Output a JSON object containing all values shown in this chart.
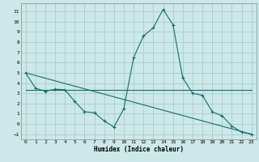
{
  "title": "",
  "xlabel": "Humidex (Indice chaleur)",
  "ylabel": "",
  "bg_color": "#cce8e8",
  "grid_color": "#aacccc",
  "line_color": "#1a6b6b",
  "xlim": [
    -0.5,
    23.5
  ],
  "ylim": [
    -1.5,
    11.8
  ],
  "xticks": [
    0,
    1,
    2,
    3,
    4,
    5,
    6,
    7,
    8,
    9,
    10,
    11,
    12,
    13,
    14,
    15,
    16,
    17,
    18,
    19,
    20,
    21,
    22,
    23
  ],
  "yticks": [
    -1,
    0,
    1,
    2,
    3,
    4,
    5,
    6,
    7,
    8,
    9,
    10,
    11
  ],
  "line1_x": [
    0,
    1,
    2,
    3,
    4,
    5,
    6,
    7,
    8,
    9,
    10,
    11,
    12,
    13,
    14,
    15,
    16,
    17,
    18,
    19,
    20,
    21,
    22,
    23
  ],
  "line1_y": [
    5.0,
    3.5,
    3.2,
    3.4,
    3.35,
    2.2,
    1.2,
    1.1,
    0.3,
    -0.3,
    1.5,
    6.5,
    8.6,
    9.4,
    11.2,
    9.7,
    4.5,
    3.0,
    2.8,
    1.2,
    0.8,
    -0.2,
    -0.8,
    -1.0
  ],
  "line2_x": [
    0,
    23
  ],
  "line2_y": [
    3.3,
    3.3
  ],
  "line3_x": [
    0,
    23
  ],
  "line3_y": [
    5.0,
    -1.0
  ]
}
